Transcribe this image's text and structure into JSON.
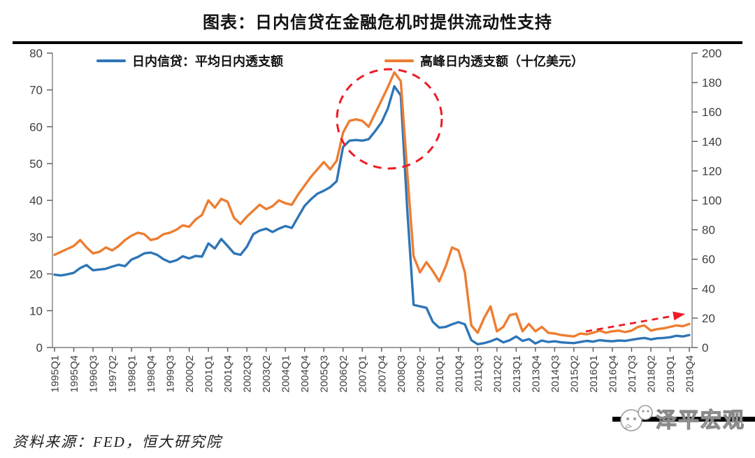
{
  "title": "图表：日内信贷在金融危机时提供流动性支持",
  "source": "资料来源：FED，恒大研究院",
  "watermark": "泽平宏观",
  "chart_data": {
    "type": "line",
    "title": "图表：日内信贷在金融危机时提供流动性支持",
    "x": [
      "1995Q1",
      "1995Q2",
      "1995Q3",
      "1995Q4",
      "1996Q1",
      "1996Q2",
      "1996Q3",
      "1996Q4",
      "1997Q1",
      "1997Q2",
      "1997Q3",
      "1997Q4",
      "1998Q1",
      "1998Q2",
      "1998Q3",
      "1998Q4",
      "1999Q1",
      "1999Q2",
      "1999Q3",
      "1999Q4",
      "2000Q1",
      "2000Q2",
      "2000Q3",
      "2000Q4",
      "2001Q1",
      "2001Q2",
      "2001Q3",
      "2001Q4",
      "2002Q1",
      "2002Q2",
      "2002Q3",
      "2002Q4",
      "2003Q1",
      "2003Q2",
      "2003Q3",
      "2003Q4",
      "2004Q1",
      "2004Q2",
      "2004Q3",
      "2004Q4",
      "2005Q1",
      "2005Q2",
      "2005Q3",
      "2005Q4",
      "2006Q1",
      "2006Q2",
      "2006Q3",
      "2006Q4",
      "2007Q1",
      "2007Q2",
      "2007Q3",
      "2007Q4",
      "2008Q1",
      "2008Q2",
      "2008Q3",
      "2008Q4",
      "2009Q1",
      "2009Q2",
      "2009Q3",
      "2009Q4",
      "2010Q1",
      "2010Q2",
      "2010Q3",
      "2010Q4",
      "2011Q1",
      "2011Q2",
      "2011Q3",
      "2011Q4",
      "2012Q1",
      "2012Q2",
      "2012Q3",
      "2012Q4",
      "2013Q1",
      "2013Q2",
      "2013Q3",
      "2013Q4",
      "2014Q1",
      "2014Q2",
      "2014Q3",
      "2014Q4",
      "2015Q1",
      "2015Q2",
      "2015Q3",
      "2015Q4",
      "2016Q1",
      "2016Q2",
      "2016Q3",
      "2016Q4",
      "2017Q1",
      "2017Q2",
      "2017Q3",
      "2017Q4",
      "2018Q1",
      "2018Q2",
      "2018Q3",
      "2018Q4",
      "2019Q1",
      "2019Q2",
      "2019Q3",
      "2019Q4"
    ],
    "x_tick_step": 3,
    "x_tick_labels": [
      "1995Q1",
      "1995Q4",
      "1996Q3",
      "1997Q2",
      "1998Q1",
      "1998Q4",
      "1999Q3",
      "2000Q2",
      "2001Q1",
      "2001Q4",
      "2002Q3",
      "2003Q2",
      "2004Q1",
      "2004Q4",
      "2005Q3",
      "2006Q2",
      "2007Q1",
      "2007Q4",
      "2008Q3",
      "2009Q2",
      "2010Q1",
      "2010Q4",
      "2011Q3",
      "2012Q2",
      "2013Q1",
      "2013Q4",
      "2014Q3",
      "2015Q2",
      "2016Q1",
      "2016Q4",
      "2017Q3",
      "2018Q2",
      "2019Q1",
      "2019Q4"
    ],
    "series": [
      {
        "name": "日内信贷：平均日内透支额",
        "color": "#2e75b6",
        "axis": "left",
        "values": [
          19.8,
          19.6,
          19.9,
          20.3,
          21.6,
          22.4,
          21.0,
          21.2,
          21.4,
          22.0,
          22.5,
          22.1,
          23.9,
          24.6,
          25.6,
          25.8,
          25.2,
          24.0,
          23.2,
          23.7,
          24.8,
          24.2,
          24.9,
          24.7,
          28.3,
          26.9,
          29.5,
          27.6,
          25.6,
          25.2,
          27.4,
          30.8,
          31.8,
          32.3,
          31.4,
          32.3,
          33.0,
          32.5,
          35.5,
          38.5,
          40.3,
          41.8,
          42.6,
          43.6,
          45.2,
          54.5,
          56.2,
          56.4,
          56.2,
          56.6,
          58.8,
          61.2,
          65.0,
          71.0,
          68.5,
          38.0,
          11.6,
          11.2,
          10.8,
          7.0,
          5.4,
          5.6,
          6.3,
          6.9,
          6.3,
          2.0,
          0.9,
          1.2,
          1.7,
          2.4,
          1.4,
          2.0,
          3.0,
          1.8,
          2.3,
          1.1,
          1.9,
          1.5,
          1.7,
          1.4,
          1.3,
          1.2,
          1.5,
          1.8,
          1.6,
          2.0,
          1.8,
          1.7,
          1.9,
          1.8,
          2.1,
          2.4,
          2.6,
          2.2,
          2.5,
          2.6,
          2.8,
          3.2,
          3.0,
          3.4
        ]
      },
      {
        "name": "高峰日内透支额（十亿美元）",
        "color": "#ed7d31",
        "axis": "right",
        "values": [
          63,
          65,
          67,
          69,
          73,
          68,
          64,
          65,
          68,
          66,
          69,
          73,
          76,
          78,
          77,
          73,
          74,
          77,
          78,
          80,
          83,
          82,
          87,
          90,
          100,
          95,
          101,
          99,
          88,
          84,
          89,
          93,
          97,
          94,
          96,
          100,
          98,
          97,
          104,
          110,
          116,
          121,
          126,
          121,
          127,
          146,
          154,
          155,
          154,
          150,
          159,
          168,
          177,
          187,
          181,
          120,
          62,
          51,
          58,
          52,
          45,
          55,
          68,
          66,
          51,
          15,
          10,
          20,
          28,
          11,
          14,
          22,
          23,
          11,
          16,
          11,
          14,
          10,
          9.5,
          8.5,
          8,
          7.5,
          9.5,
          9,
          10,
          11.5,
          10,
          11,
          11.5,
          10.5,
          11.5,
          14,
          15,
          11.5,
          12.5,
          13,
          14,
          15,
          14.5,
          16
        ]
      }
    ],
    "left_axis": {
      "min": 0,
      "max": 80,
      "step": 10,
      "ticks": [
        0,
        10,
        20,
        30,
        40,
        50,
        60,
        70,
        80
      ]
    },
    "right_axis": {
      "min": 0,
      "max": 200,
      "step": 20,
      "ticks": [
        0,
        20,
        40,
        60,
        80,
        100,
        120,
        140,
        160,
        180,
        200
      ]
    },
    "grid": false,
    "legend_position": "top",
    "annotations": {
      "circle": {
        "note": "highlight of 2007-2008 crisis peak",
        "color": "#ed1c24"
      },
      "arrow": {
        "note": "recent upward trend 2016-2019",
        "color": "#ed1c24"
      }
    }
  }
}
